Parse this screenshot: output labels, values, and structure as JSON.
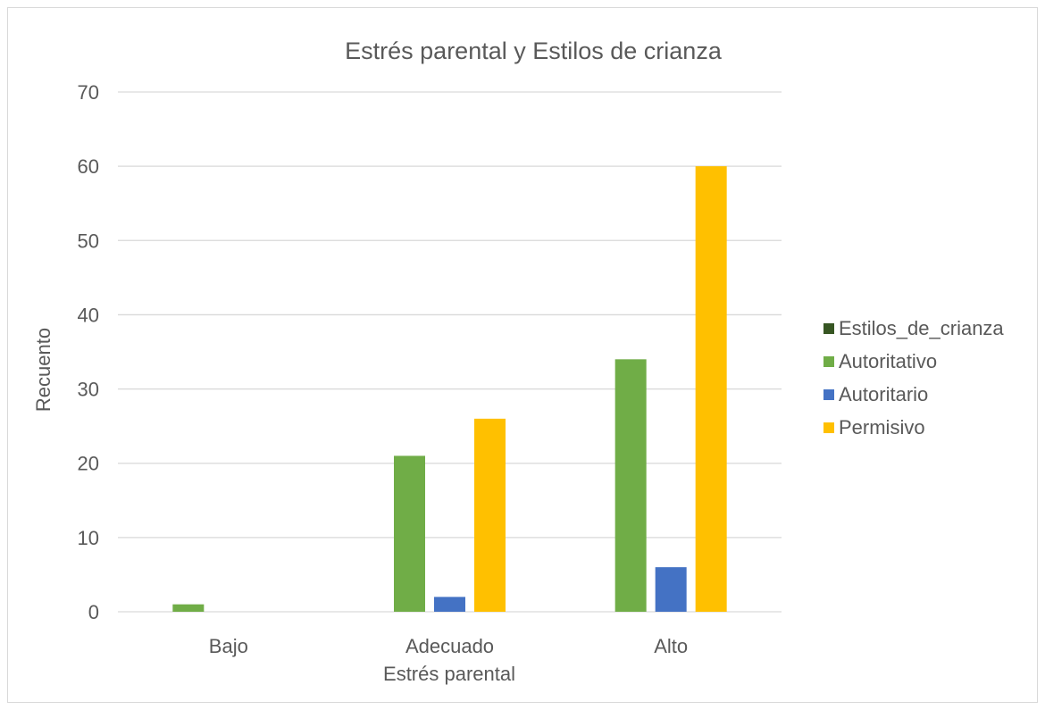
{
  "chart_data": {
    "type": "bar",
    "title": "Estrés parental y Estilos de crianza",
    "xlabel": "Estrés parental",
    "ylabel": "Recuento",
    "categories": [
      "Bajo",
      "Adecuado",
      "Alto"
    ],
    "ylim": [
      0,
      70
    ],
    "yticks": [
      0,
      10,
      20,
      30,
      40,
      50,
      60,
      70
    ],
    "grid": true,
    "legend_position": "right",
    "legend_title": "Estilos_de_crianza",
    "legend_title_color": "#375623",
    "series": [
      {
        "name": "Autoritativo",
        "color": "#70ad47",
        "values": [
          1,
          21,
          34
        ]
      },
      {
        "name": "Autoritario",
        "color": "#4472c4",
        "values": [
          0,
          2,
          6
        ]
      },
      {
        "name": "Permisivo",
        "color": "#ffc000",
        "values": [
          0,
          26,
          60
        ]
      }
    ]
  }
}
